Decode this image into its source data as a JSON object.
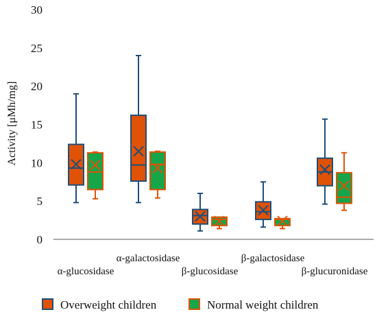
{
  "chart_data": {
    "type": "box",
    "ylabel": "Activity [μMh/mg]",
    "ylim": [
      0,
      30
    ],
    "yticks": [
      0,
      5,
      10,
      15,
      20,
      25,
      30
    ],
    "grid": false,
    "legend_position": "bottom",
    "categories": [
      "α-glucosidase",
      "α-galactosidase",
      "β-glucosidase",
      "β-galactosidase",
      "β-glucuronidase"
    ],
    "series": [
      {
        "name": "Overweight children",
        "fill": "#E05206",
        "stroke": "#1F4E79",
        "boxes": [
          {
            "min": 4.8,
            "q1": 7.1,
            "median": 9.3,
            "q3": 12.4,
            "max": 19.0,
            "mean": 9.8
          },
          {
            "min": 4.8,
            "q1": 7.6,
            "median": 9.7,
            "q3": 16.2,
            "max": 24.0,
            "mean": 11.5
          },
          {
            "min": 1.1,
            "q1": 2.0,
            "median": 3.1,
            "q3": 3.9,
            "max": 6.0,
            "mean": 3.0
          },
          {
            "min": 1.6,
            "q1": 2.6,
            "median": 3.6,
            "q3": 4.9,
            "max": 7.5,
            "mean": 3.8
          },
          {
            "min": 4.6,
            "q1": 7.0,
            "median": 8.8,
            "q3": 10.6,
            "max": 15.7,
            "mean": 9.1
          }
        ]
      },
      {
        "name": "Normal weight children",
        "fill": "#17A54A",
        "stroke": "#E05206",
        "boxes": [
          {
            "min": 5.3,
            "q1": 6.5,
            "median": 8.8,
            "q3": 11.3,
            "max": 11.4,
            "mean": 9.7
          },
          {
            "min": 5.4,
            "q1": 6.5,
            "median": 9.8,
            "q3": 11.4,
            "max": 11.5,
            "mean": 9.3
          },
          {
            "min": 1.4,
            "q1": 1.8,
            "median": 2.6,
            "q3": 2.9,
            "max": 2.9,
            "mean": 2.4
          },
          {
            "min": 1.4,
            "q1": 1.8,
            "median": 2.6,
            "q3": 2.7,
            "max": 2.7,
            "mean": 2.4
          },
          {
            "min": 3.8,
            "q1": 4.7,
            "median": 5.5,
            "q3": 8.7,
            "max": 11.3,
            "mean": 7.0
          }
        ]
      }
    ]
  }
}
